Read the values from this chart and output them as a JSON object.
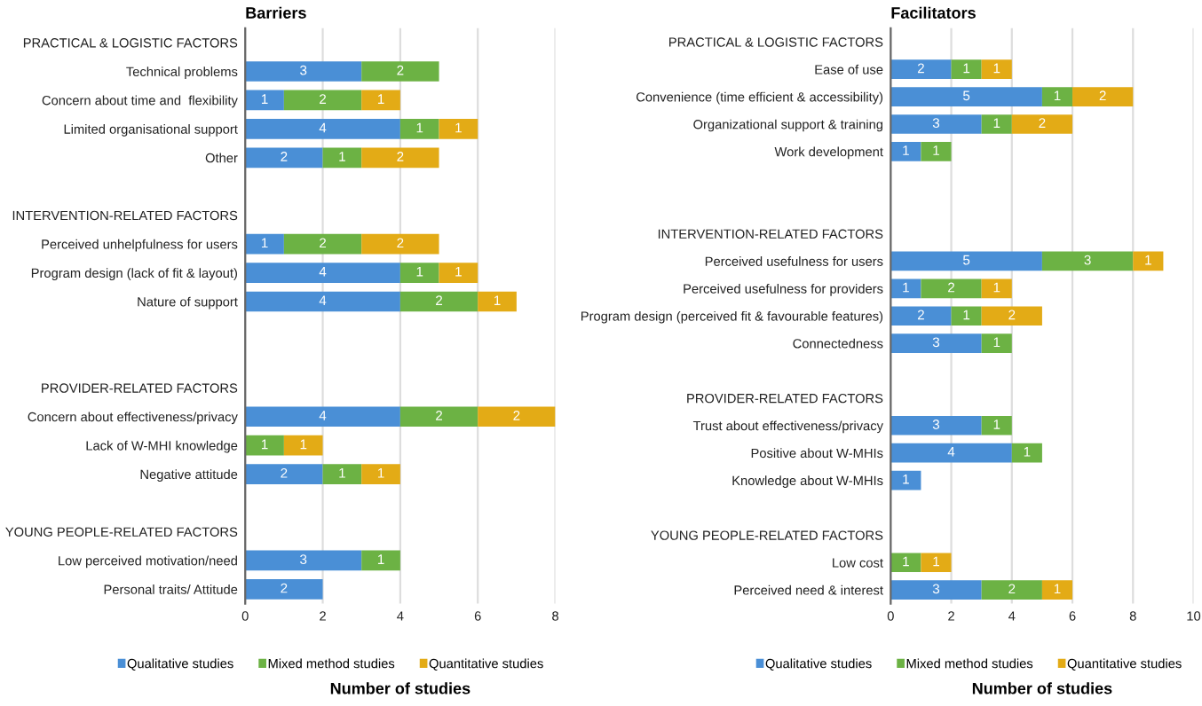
{
  "chart_data": [
    {
      "type": "bar",
      "orientation": "horizontal",
      "stacked": true,
      "title": "Barriers",
      "xlabel": "Number of studies",
      "categories": [
        "PRACTICAL & LOGISTIC FACTORS",
        "Technical problems",
        "Concern about time and  flexibility",
        "Limited organisational support",
        "Other",
        null,
        "INTERVENTION-RELATED FACTORS",
        "Perceived unhelpfulness for users",
        "Program design (lack of fit & layout)",
        "Nature of support",
        null,
        null,
        "PROVIDER-RELATED FACTORS",
        "Concern about effectiveness/privacy",
        "Lack of W-MHI knowledge",
        "Negative attitude",
        null,
        "YOUNG PEOPLE-RELATED FACTORS",
        "Low perceived motivation/need",
        "Personal traits/ Attitude"
      ],
      "series": [
        {
          "name": "Qualitative studies",
          "color": "#4a8fd6",
          "values": [
            null,
            3,
            1,
            4,
            2,
            null,
            null,
            1,
            4,
            4,
            null,
            null,
            null,
            4,
            null,
            2,
            null,
            null,
            3,
            2
          ]
        },
        {
          "name": "Mixed method studies",
          "color": "#6cb244",
          "values": [
            null,
            2,
            2,
            1,
            1,
            null,
            null,
            2,
            1,
            2,
            null,
            null,
            null,
            2,
            1,
            1,
            null,
            null,
            1,
            null
          ]
        },
        {
          "name": "Quantitative studies",
          "color": "#e3ab16",
          "values": [
            null,
            null,
            1,
            1,
            2,
            null,
            null,
            2,
            1,
            1,
            null,
            null,
            null,
            2,
            1,
            1,
            null,
            null,
            null,
            null
          ]
        }
      ],
      "xlim": [
        0,
        8
      ],
      "xticks": [
        0,
        2,
        4,
        6,
        8
      ],
      "grid": "x",
      "legend": "bottom",
      "data_labels": true
    },
    {
      "type": "bar",
      "orientation": "horizontal",
      "stacked": true,
      "title": "Facilitators",
      "xlabel": "Number of studies",
      "categories": [
        "PRACTICAL & LOGISTIC FACTORS",
        "Ease of use",
        "Convenience (time efficient & accessibility)",
        "Organizational support & training",
        "Work development",
        null,
        null,
        "INTERVENTION-RELATED FACTORS",
        "Perceived usefulness for users",
        "Perceived usefulness for providers",
        "Program design (perceived fit & favourable features)",
        "Connectedness",
        null,
        "PROVIDER-RELATED FACTORS",
        "Trust about effectiveness/privacy",
        "Positive about W-MHIs",
        "Knowledge about W-MHIs",
        null,
        "YOUNG PEOPLE-RELATED FACTORS",
        "Low cost",
        "Perceived need & interest"
      ],
      "series": [
        {
          "name": "Qualitative studies",
          "color": "#4a8fd6",
          "values": [
            null,
            2,
            5,
            3,
            1,
            null,
            null,
            null,
            5,
            1,
            2,
            3,
            null,
            null,
            3,
            4,
            1,
            null,
            null,
            null,
            3
          ]
        },
        {
          "name": "Mixed method studies",
          "color": "#6cb244",
          "values": [
            null,
            1,
            1,
            1,
            1,
            null,
            null,
            null,
            3,
            2,
            1,
            1,
            null,
            null,
            1,
            1,
            null,
            null,
            null,
            1,
            2
          ]
        },
        {
          "name": "Quantitative studies",
          "color": "#e3ab16",
          "values": [
            null,
            1,
            2,
            2,
            null,
            null,
            null,
            null,
            1,
            1,
            2,
            null,
            null,
            null,
            null,
            null,
            null,
            null,
            null,
            1,
            1
          ]
        }
      ],
      "xlim": [
        0,
        10
      ],
      "xticks": [
        0,
        2,
        4,
        6,
        8,
        10
      ],
      "grid": "x",
      "legend": "bottom",
      "data_labels": true
    }
  ]
}
